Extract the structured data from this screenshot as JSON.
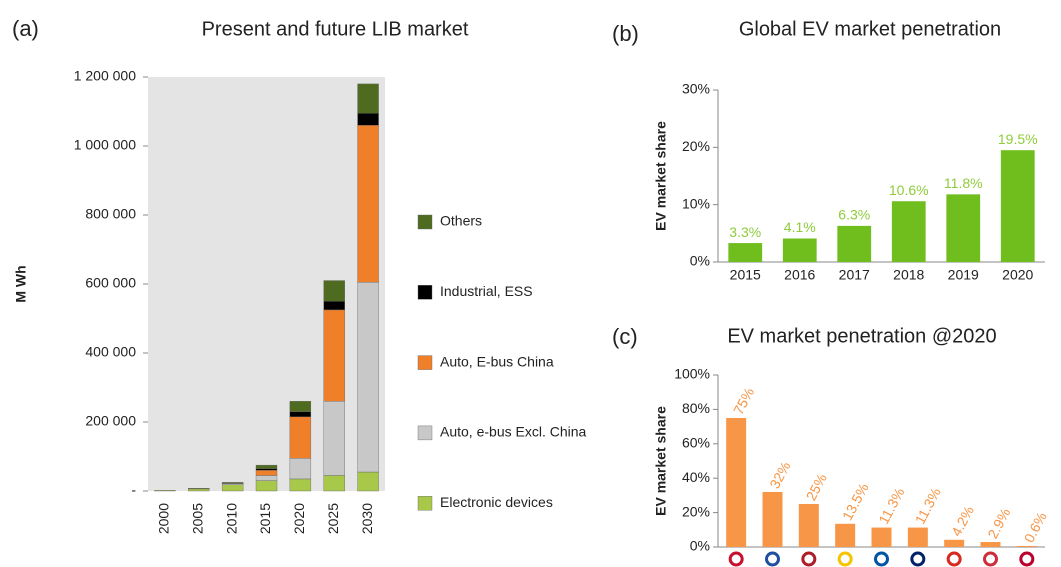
{
  "chart_data": [
    {
      "type": "bar",
      "label": "(a)",
      "title": "Present and future LIB market",
      "ylabel": "M Wh",
      "categories": [
        "2000",
        "2005",
        "2010",
        "2015",
        "2020",
        "2025",
        "2030"
      ],
      "series": [
        {
          "name": "Electronic devices",
          "color": "#a8c84a",
          "values": [
            2000,
            6000,
            18000,
            30000,
            35000,
            45000,
            55000
          ]
        },
        {
          "name": "Auto, e-bus Excl. China",
          "color": "#c8c8c8",
          "values": [
            0,
            0,
            3000,
            15000,
            60000,
            215000,
            550000
          ]
        },
        {
          "name": "Auto, E-bus China",
          "color": "#f07f2a",
          "values": [
            0,
            0,
            1000,
            15000,
            120000,
            265000,
            455000
          ]
        },
        {
          "name": "Industrial, ESS",
          "color": "#000000",
          "values": [
            0,
            0,
            1000,
            5000,
            15000,
            25000,
            35000
          ]
        },
        {
          "name": "Others",
          "color": "#4f6b1f",
          "values": [
            0,
            2000,
            2000,
            10000,
            30000,
            60000,
            85000
          ]
        }
      ],
      "ylim": [
        0,
        1200000
      ],
      "yticks": [
        {
          "value": 0,
          "label": "-"
        },
        {
          "value": 200000,
          "label": "200 000"
        },
        {
          "value": 400000,
          "label": "400 000"
        },
        {
          "value": 600000,
          "label": "600 000"
        },
        {
          "value": 800000,
          "label": "800 000"
        },
        {
          "value": 1000000,
          "label": "1 000 000"
        },
        {
          "value": 1200000,
          "label": "1 200 000"
        }
      ],
      "plot_background": "#e4e4e4",
      "legend": "right",
      "stacked": true
    },
    {
      "type": "bar",
      "label": "(b)",
      "title": "Global EV market penetration",
      "ylabel": "EV market share",
      "categories": [
        "2015",
        "2016",
        "2017",
        "2018",
        "2019",
        "2020"
      ],
      "values": [
        3.3,
        4.1,
        6.3,
        10.6,
        11.8,
        19.5
      ],
      "value_labels": [
        "3.3%",
        "4.1%",
        "6.3%",
        "10.6%",
        "11.8%",
        "19.5%"
      ],
      "color": "#6fbe1e",
      "label_color": "#8fcc3c",
      "ylim": [
        0,
        30
      ],
      "yticks": [
        {
          "value": 0,
          "label": "0%"
        },
        {
          "value": 10,
          "label": "10%"
        },
        {
          "value": 20,
          "label": "20%"
        },
        {
          "value": 30,
          "label": "30%"
        }
      ]
    },
    {
      "type": "bar",
      "label": "(c)",
      "title": "EV market penetration @2020",
      "ylabel": "EV market share",
      "categories": [
        null,
        null,
        null,
        null,
        null,
        null,
        null,
        null,
        null
      ],
      "values": [
        75,
        32,
        25,
        13.5,
        11.3,
        11.3,
        4.2,
        2.9,
        0.6
      ],
      "value_labels": [
        "75%",
        "32%",
        "25%",
        "13.5%",
        "11.3%",
        "11.3%",
        "4.2%",
        "2.9%",
        "0.6%"
      ],
      "color": "#f79646",
      "label_color": "#f79646",
      "ylim": [
        0,
        100
      ],
      "yticks": [
        {
          "value": 0,
          "label": "0%"
        },
        {
          "value": 20,
          "label": "20%"
        },
        {
          "value": 40,
          "label": "40%"
        },
        {
          "value": 60,
          "label": "60%"
        },
        {
          "value": 80,
          "label": "80%"
        },
        {
          "value": 100,
          "label": "100%"
        }
      ]
    }
  ]
}
